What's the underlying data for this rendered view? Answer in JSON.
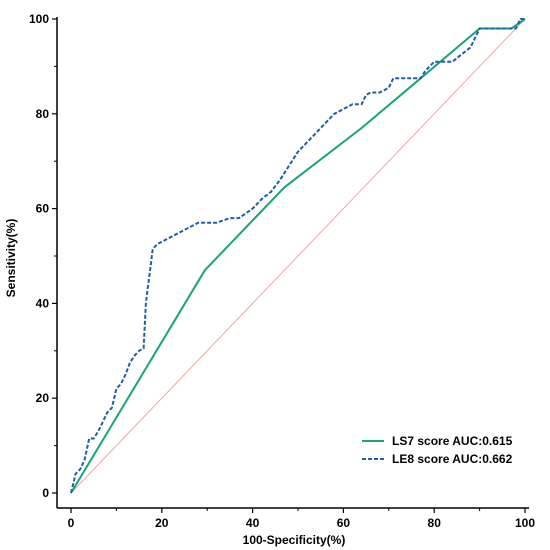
{
  "chart_data": {
    "type": "line",
    "title": "",
    "xlabel": "100-Specificity(%)",
    "ylabel": "Sensitivity(%)",
    "xlim": [
      0,
      100
    ],
    "ylim": [
      0,
      100
    ],
    "xticks": [
      0,
      20,
      40,
      60,
      80,
      100
    ],
    "yticks": [
      0,
      20,
      40,
      60,
      80,
      100
    ],
    "grid": false,
    "legend_position": "bottom-right",
    "reference_line": {
      "x": [
        0,
        100
      ],
      "y": [
        0,
        100
      ],
      "color": "#f4a6a6"
    },
    "series": [
      {
        "name": "LS7 score AUC:0.615",
        "color": "#1aa37a",
        "style": "solid",
        "x": [
          0,
          29.5,
          47,
          64,
          77,
          90,
          97,
          100
        ],
        "y": [
          0,
          47,
          64.5,
          77,
          87.5,
          98,
          98,
          100
        ]
      },
      {
        "name": "LE8 score AUC:0.662",
        "color": "#1f5ea8",
        "style": "dashed",
        "x": [
          0,
          0.5,
          1,
          1.5,
          2,
          3,
          4,
          5,
          6,
          7,
          8,
          9,
          10,
          11,
          12,
          13,
          14,
          15,
          16,
          16.5,
          17,
          17.5,
          18,
          19,
          20,
          22,
          25,
          28,
          30,
          32,
          35,
          37,
          40,
          42,
          44,
          46,
          48,
          50,
          52,
          54,
          56,
          58,
          60,
          62,
          64,
          65,
          66,
          68,
          70,
          71,
          72,
          74,
          77,
          78,
          80,
          82,
          84,
          86,
          88,
          90,
          92,
          94,
          96,
          98,
          99,
          100
        ],
        "y": [
          0,
          2,
          4,
          4.5,
          5,
          7,
          11.5,
          11.5,
          13,
          15,
          17,
          18,
          22,
          23,
          25,
          27.5,
          29,
          30,
          30.5,
          40,
          44,
          47.5,
          51.5,
          52.5,
          53,
          54,
          55.5,
          57,
          57,
          57,
          58,
          58,
          60,
          62,
          63.5,
          66,
          69,
          72,
          74,
          76,
          78,
          80,
          81,
          82,
          82,
          84,
          84.5,
          84.5,
          85.5,
          87.5,
          87.5,
          87.5,
          87.5,
          89,
          91,
          91,
          91,
          92.5,
          94,
          98,
          98,
          98,
          98,
          98,
          100,
          100
        ]
      }
    ]
  }
}
